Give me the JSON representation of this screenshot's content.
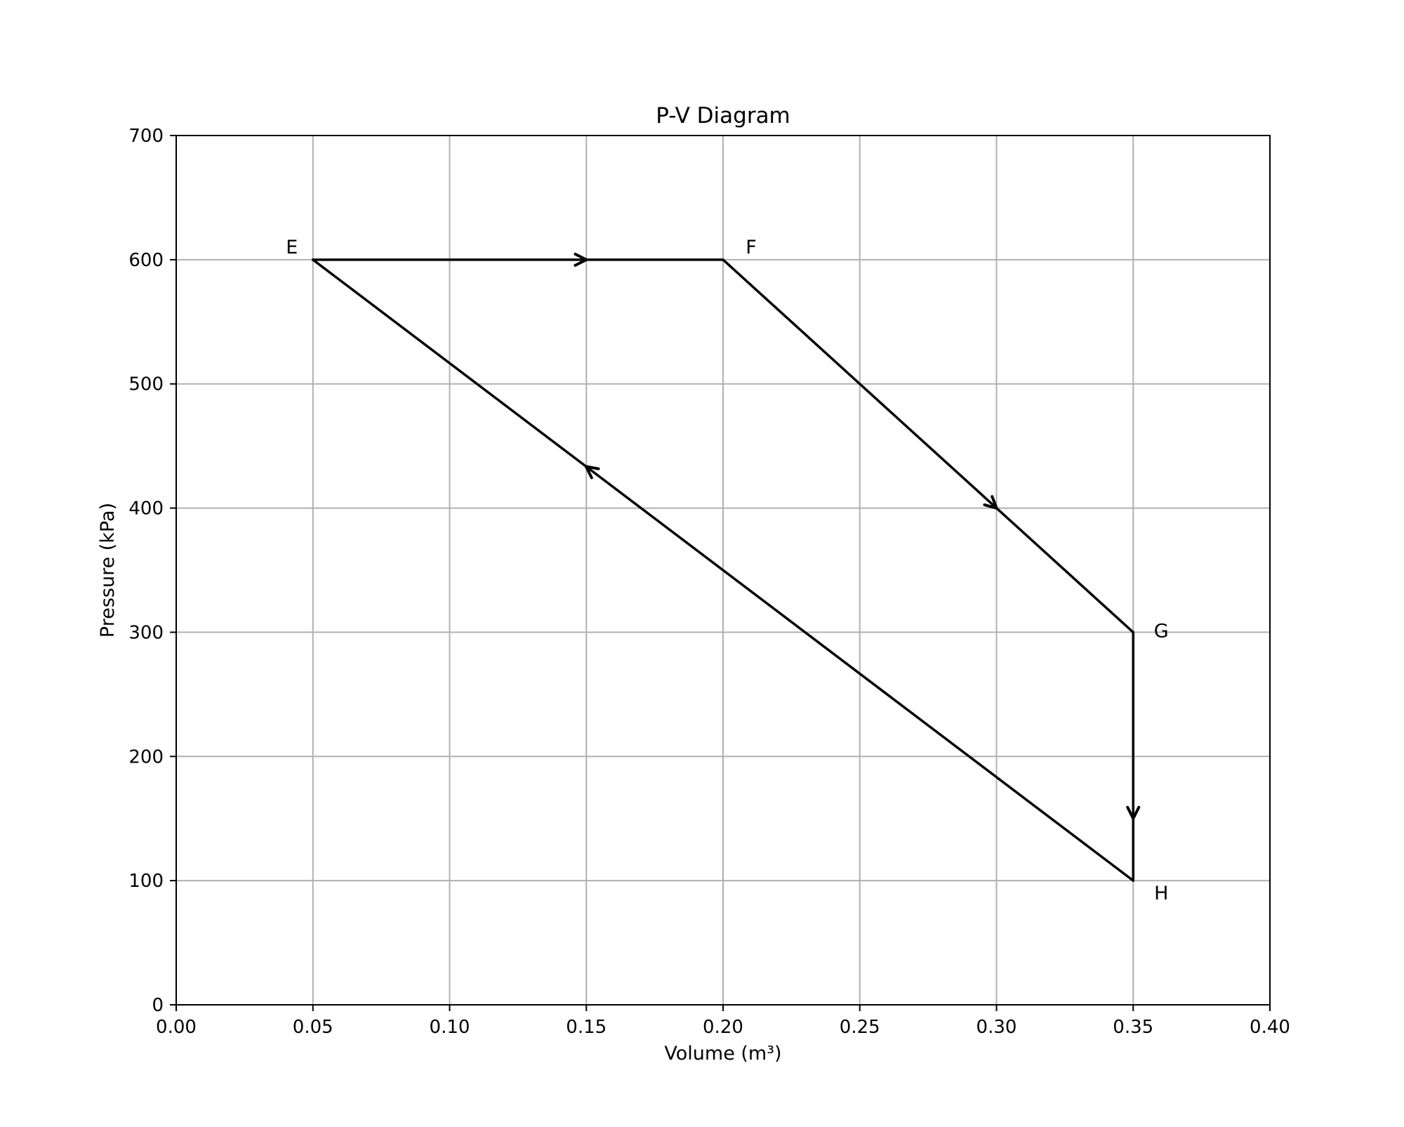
{
  "chart_data": {
    "type": "line",
    "title": "P-V Diagram",
    "xlabel": "Volume (m³)",
    "ylabel": "Pressure (kPa)",
    "xlim": [
      0.0,
      0.4
    ],
    "ylim": [
      0,
      700
    ],
    "xticks": [
      "0.00",
      "0.05",
      "0.10",
      "0.15",
      "0.20",
      "0.25",
      "0.30",
      "0.35",
      "0.40"
    ],
    "yticks": [
      "0",
      "100",
      "200",
      "300",
      "400",
      "500",
      "600",
      "700"
    ],
    "grid": true,
    "points": [
      {
        "label": "E",
        "x": 0.05,
        "y": 600
      },
      {
        "label": "F",
        "x": 0.2,
        "y": 600
      },
      {
        "label": "G",
        "x": 0.35,
        "y": 300
      },
      {
        "label": "H",
        "x": 0.35,
        "y": 100
      }
    ],
    "segments": [
      {
        "from": "E",
        "to": "F"
      },
      {
        "from": "F",
        "to": "G"
      },
      {
        "from": "G",
        "to": "H"
      },
      {
        "from": "H",
        "to": "E"
      }
    ],
    "line_color": "#000000",
    "grid_color": "#b0b0b0"
  }
}
